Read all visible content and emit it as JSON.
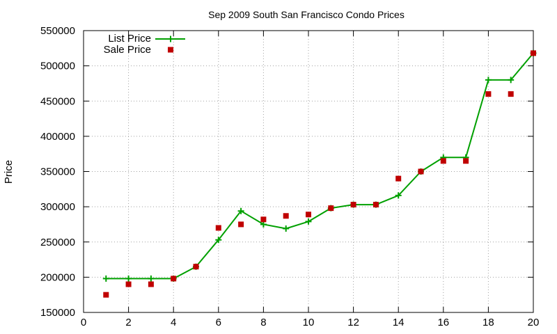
{
  "chart_data": {
    "type": "line",
    "title": "Sep 2009 South San Francisco Condo Prices",
    "xlabel": "",
    "ylabel": "Price",
    "xlim": [
      0,
      20
    ],
    "ylim": [
      150000,
      550000
    ],
    "xticks": [
      0,
      2,
      4,
      6,
      8,
      10,
      12,
      14,
      16,
      18,
      20
    ],
    "yticks": [
      150000,
      200000,
      250000,
      300000,
      350000,
      400000,
      450000,
      500000,
      550000
    ],
    "grid": true,
    "legend_position": "top-left",
    "series": [
      {
        "name": "List Price",
        "style": "line-plus",
        "color": "#00a000",
        "x": [
          1,
          2,
          3,
          4,
          5,
          6,
          7,
          8,
          9,
          10,
          11,
          12,
          13,
          14,
          15,
          16,
          17,
          18,
          19,
          20
        ],
        "values": [
          198000,
          198000,
          198000,
          198000,
          215000,
          253000,
          294000,
          275000,
          269000,
          279000,
          298000,
          303000,
          303000,
          316000,
          350000,
          370000,
          370000,
          480000,
          480000,
          518000
        ]
      },
      {
        "name": "Sale Price",
        "style": "square-marker",
        "color": "#c00000",
        "x": [
          1,
          2,
          3,
          4,
          5,
          6,
          7,
          8,
          9,
          10,
          11,
          12,
          13,
          14,
          15,
          16,
          17,
          18,
          19,
          20
        ],
        "values": [
          175000,
          190000,
          190000,
          198000,
          215000,
          270000,
          275000,
          282000,
          287000,
          289000,
          298000,
          303000,
          303000,
          340000,
          350000,
          365000,
          365000,
          460000,
          460000,
          518000
        ]
      }
    ]
  }
}
